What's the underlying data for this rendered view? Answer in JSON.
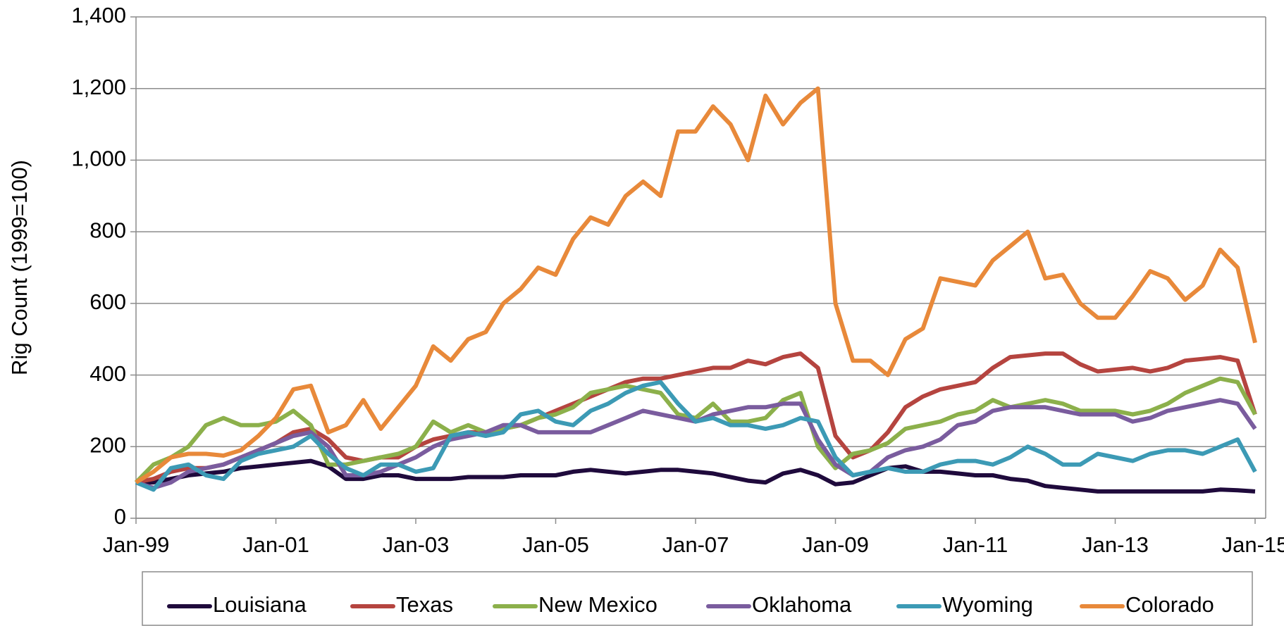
{
  "chart_data": {
    "type": "line",
    "y_axis_label": "Rig Count (1999=100)",
    "categories": [
      "Jan-99",
      null,
      null,
      null,
      null,
      null,
      null,
      null,
      "Jan-01",
      null,
      null,
      null,
      null,
      null,
      null,
      null,
      "Jan-03",
      null,
      null,
      null,
      null,
      null,
      null,
      null,
      "Jan-05",
      null,
      null,
      null,
      null,
      null,
      null,
      null,
      "Jan-07",
      null,
      null,
      null,
      null,
      null,
      null,
      null,
      "Jan-09",
      null,
      null,
      null,
      null,
      null,
      null,
      null,
      "Jan-11",
      null,
      null,
      null,
      null,
      null,
      null,
      null,
      "Jan-13",
      null,
      null,
      null,
      null,
      null,
      null,
      null,
      "Jan-15"
    ],
    "series": [
      {
        "name": "Louisiana",
        "color": "#1f0a3c",
        "values": [
          100,
          100,
          110,
          120,
          125,
          130,
          140,
          145,
          150,
          155,
          160,
          145,
          110,
          110,
          120,
          120,
          110,
          110,
          110,
          115,
          115,
          115,
          120,
          120,
          120,
          130,
          135,
          130,
          125,
          130,
          135,
          135,
          130,
          125,
          115,
          105,
          100,
          125,
          135,
          120,
          95,
          100,
          120,
          140,
          145,
          130,
          130,
          125,
          120,
          120,
          110,
          105,
          90,
          85,
          80,
          75,
          75,
          75,
          75,
          75,
          75,
          75,
          80,
          78,
          75
        ]
      },
      {
        "name": "Texas",
        "color": "#b5443f",
        "values": [
          100,
          110,
          130,
          140,
          140,
          150,
          170,
          190,
          210,
          240,
          250,
          220,
          170,
          160,
          170,
          170,
          200,
          220,
          230,
          240,
          240,
          250,
          260,
          280,
          300,
          320,
          340,
          360,
          380,
          390,
          390,
          400,
          410,
          420,
          420,
          440,
          430,
          450,
          460,
          420,
          230,
          170,
          190,
          240,
          310,
          340,
          360,
          370,
          380,
          420,
          450,
          455,
          460,
          460,
          430,
          410,
          415,
          420,
          410,
          420,
          440,
          445,
          450,
          440,
          290
        ]
      },
      {
        "name": "New Mexico",
        "color": "#8cb04b",
        "values": [
          100,
          150,
          170,
          200,
          260,
          280,
          260,
          260,
          270,
          300,
          260,
          150,
          150,
          160,
          170,
          180,
          200,
          270,
          240,
          260,
          240,
          250,
          260,
          280,
          290,
          310,
          350,
          360,
          370,
          360,
          350,
          290,
          280,
          320,
          270,
          270,
          280,
          330,
          350,
          200,
          140,
          180,
          190,
          210,
          250,
          260,
          270,
          290,
          300,
          330,
          310,
          320,
          330,
          320,
          300,
          300,
          300,
          290,
          300,
          320,
          350,
          370,
          390,
          380,
          290
        ]
      },
      {
        "name": "Oklahoma",
        "color": "#7a5c9e",
        "values": [
          100,
          85,
          100,
          130,
          140,
          150,
          170,
          190,
          210,
          230,
          240,
          200,
          120,
          120,
          130,
          150,
          170,
          200,
          220,
          230,
          240,
          260,
          260,
          240,
          240,
          240,
          240,
          260,
          280,
          300,
          290,
          280,
          270,
          290,
          300,
          310,
          310,
          320,
          320,
          220,
          150,
          120,
          130,
          170,
          190,
          200,
          220,
          260,
          270,
          300,
          310,
          310,
          310,
          300,
          290,
          290,
          290,
          270,
          280,
          300,
          310,
          320,
          330,
          320,
          250
        ]
      },
      {
        "name": "Wyoming",
        "color": "#3c9ab5",
        "values": [
          100,
          80,
          140,
          150,
          120,
          110,
          160,
          180,
          190,
          200,
          230,
          180,
          140,
          120,
          150,
          150,
          130,
          140,
          230,
          240,
          230,
          240,
          290,
          300,
          270,
          260,
          300,
          320,
          350,
          370,
          380,
          320,
          270,
          280,
          260,
          260,
          250,
          260,
          280,
          270,
          170,
          120,
          130,
          140,
          130,
          130,
          150,
          160,
          160,
          150,
          170,
          200,
          180,
          150,
          150,
          180,
          170,
          160,
          180,
          190,
          190,
          180,
          200,
          220,
          130
        ]
      },
      {
        "name": "Colorado",
        "color": "#e8893a",
        "values": [
          100,
          130,
          170,
          180,
          180,
          175,
          190,
          230,
          280,
          360,
          370,
          240,
          260,
          330,
          250,
          310,
          370,
          480,
          440,
          500,
          520,
          600,
          640,
          700,
          680,
          780,
          840,
          820,
          900,
          940,
          900,
          1080,
          1080,
          1150,
          1100,
          1000,
          1180,
          1100,
          1160,
          1200,
          600,
          440,
          440,
          400,
          500,
          530,
          670,
          660,
          650,
          720,
          760,
          800,
          670,
          680,
          600,
          560,
          560,
          620,
          690,
          670,
          610,
          650,
          750,
          700,
          490
        ]
      }
    ],
    "ylim": [
      0,
      1400
    ],
    "yticks": [
      0,
      200,
      400,
      600,
      800,
      {
        "value": 1000,
        "label": "1,000"
      },
      {
        "value": 1200,
        "label": "1,200"
      },
      {
        "value": 1400,
        "label": "1,400"
      }
    ],
    "grid": true,
    "legend": "bottom"
  }
}
